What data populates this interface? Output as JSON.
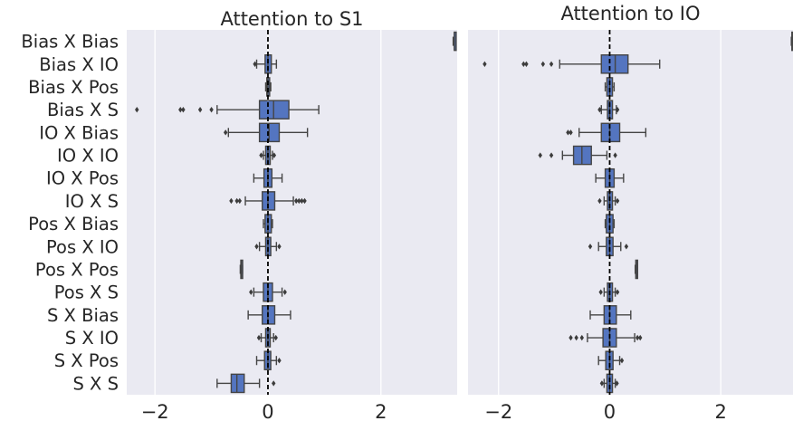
{
  "chart_data": [
    {
      "type": "boxplot",
      "title": "Attention to S1",
      "xlim": [
        -2.5,
        3.35
      ],
      "xticks": [
        -2,
        0,
        2
      ],
      "xtick_labels": [
        "−2",
        "0",
        "2"
      ],
      "vline": 0,
      "grid": true,
      "box_color": "#5475c0",
      "categories": [
        "Bias X Bias",
        "Bias X IO",
        "Bias X Pos",
        "Bias X S",
        "IO X Bias",
        "IO X IO",
        "IO X Pos",
        "IO X S",
        "Pos X Bias",
        "Pos X IO",
        "Pos X Pos",
        "Pos X S",
        "S X Bias",
        "S X IO",
        "S X Pos",
        "S X S"
      ],
      "boxes": [
        {
          "q1": 3.3,
          "median": 3.3,
          "q3": 3.3,
          "wlo": 3.28,
          "whi": 3.32,
          "outliers": []
        },
        {
          "q1": -0.05,
          "median": 0.0,
          "q3": 0.06,
          "wlo": -0.2,
          "whi": 0.15,
          "outliers": [
            -0.23
          ]
        },
        {
          "q1": -0.02,
          "median": 0.0,
          "q3": 0.03,
          "wlo": -0.04,
          "whi": 0.05,
          "outliers": []
        },
        {
          "q1": -0.15,
          "median": 0.1,
          "q3": 0.37,
          "wlo": -0.9,
          "whi": 0.9,
          "outliers": [
            -2.32,
            -1.55,
            -1.5,
            -1.2,
            -1.0
          ]
        },
        {
          "q1": -0.15,
          "median": 0.02,
          "q3": 0.2,
          "wlo": -0.7,
          "whi": 0.7,
          "outliers": [
            -0.75
          ]
        },
        {
          "q1": -0.04,
          "median": 0.0,
          "q3": 0.04,
          "wlo": -0.08,
          "whi": 0.08,
          "outliers": [
            -0.12,
            0.11
          ]
        },
        {
          "q1": -0.07,
          "median": 0.0,
          "q3": 0.07,
          "wlo": -0.25,
          "whi": 0.25,
          "outliers": []
        },
        {
          "q1": -0.1,
          "median": 0.0,
          "q3": 0.12,
          "wlo": -0.4,
          "whi": 0.45,
          "outliers": [
            -0.65,
            -0.55,
            -0.5,
            0.5,
            0.55,
            0.6,
            0.65
          ]
        },
        {
          "q1": -0.05,
          "median": 0.0,
          "q3": 0.06,
          "wlo": -0.08,
          "whi": 0.08,
          "outliers": []
        },
        {
          "q1": -0.04,
          "median": 0.0,
          "q3": 0.05,
          "wlo": -0.15,
          "whi": 0.15,
          "outliers": [
            -0.2,
            0.2
          ]
        },
        {
          "q1": -0.48,
          "median": -0.47,
          "q3": -0.46,
          "wlo": -0.49,
          "whi": -0.45,
          "outliers": []
        },
        {
          "q1": -0.08,
          "median": 0.0,
          "q3": 0.08,
          "wlo": -0.25,
          "whi": 0.25,
          "outliers": [
            -0.3,
            0.3
          ]
        },
        {
          "q1": -0.1,
          "median": 0.0,
          "q3": 0.12,
          "wlo": -0.35,
          "whi": 0.4,
          "outliers": []
        },
        {
          "q1": -0.04,
          "median": 0.0,
          "q3": 0.04,
          "wlo": -0.12,
          "whi": 0.1,
          "outliers": [
            -0.16,
            0.14
          ]
        },
        {
          "q1": -0.06,
          "median": 0.0,
          "q3": 0.05,
          "wlo": -0.2,
          "whi": 0.15,
          "outliers": [
            0.2
          ]
        },
        {
          "q1": -0.65,
          "median": -0.55,
          "q3": -0.42,
          "wlo": -0.9,
          "whi": -0.15,
          "outliers": [
            0.1
          ]
        }
      ]
    },
    {
      "type": "boxplot",
      "title": "Attention to IO",
      "xlim": [
        -2.55,
        3.3
      ],
      "xticks": [
        -2,
        0,
        2
      ],
      "xtick_labels": [
        "−2",
        "0",
        "2"
      ],
      "vline": 0,
      "grid": true,
      "box_color": "#5475c0",
      "categories": [
        "Bias X Bias",
        "Bias X IO",
        "Bias X Pos",
        "Bias X S",
        "IO X Bias",
        "IO X IO",
        "IO X Pos",
        "IO X S",
        "Pos X Bias",
        "Pos X IO",
        "Pos X Pos",
        "Pos X S",
        "S X Bias",
        "S X IO",
        "S X Pos",
        "S X S"
      ],
      "boxes": [
        {
          "q1": 3.28,
          "median": 3.29,
          "q3": 3.3,
          "wlo": 3.27,
          "whi": 3.31,
          "outliers": []
        },
        {
          "q1": -0.15,
          "median": 0.1,
          "q3": 0.33,
          "wlo": -0.9,
          "whi": 0.9,
          "outliers": [
            -2.25,
            -1.55,
            -1.5,
            -1.2,
            -1.05
          ]
        },
        {
          "q1": -0.05,
          "median": 0.0,
          "q3": 0.05,
          "wlo": -0.08,
          "whi": 0.08,
          "outliers": []
        },
        {
          "q1": -0.04,
          "median": 0.0,
          "q3": 0.05,
          "wlo": -0.15,
          "whi": 0.12,
          "outliers": [
            -0.18,
            0.14
          ]
        },
        {
          "q1": -0.15,
          "median": 0.0,
          "q3": 0.18,
          "wlo": -0.55,
          "whi": 0.65,
          "outliers": [
            -0.75,
            -0.7
          ]
        },
        {
          "q1": -0.65,
          "median": -0.5,
          "q3": -0.33,
          "wlo": -0.85,
          "whi": -0.05,
          "outliers": [
            -1.25,
            -1.05,
            0.1
          ]
        },
        {
          "q1": -0.08,
          "median": 0.0,
          "q3": 0.08,
          "wlo": -0.25,
          "whi": 0.25,
          "outliers": []
        },
        {
          "q1": -0.04,
          "median": 0.0,
          "q3": 0.05,
          "wlo": -0.1,
          "whi": 0.1,
          "outliers": [
            -0.18,
            0.14
          ]
        },
        {
          "q1": -0.06,
          "median": 0.0,
          "q3": 0.06,
          "wlo": -0.08,
          "whi": 0.08,
          "outliers": []
        },
        {
          "q1": -0.06,
          "median": 0.0,
          "q3": 0.06,
          "wlo": -0.2,
          "whi": 0.2,
          "outliers": [
            -0.35,
            0.3
          ]
        },
        {
          "q1": 0.47,
          "median": 0.48,
          "q3": 0.49,
          "wlo": 0.46,
          "whi": 0.5,
          "outliers": []
        },
        {
          "q1": -0.04,
          "median": 0.0,
          "q3": 0.05,
          "wlo": -0.1,
          "whi": 0.1,
          "outliers": [
            -0.16,
            0.14
          ]
        },
        {
          "q1": -0.1,
          "median": 0.0,
          "q3": 0.12,
          "wlo": -0.35,
          "whi": 0.38,
          "outliers": []
        },
        {
          "q1": -0.12,
          "median": 0.0,
          "q3": 0.12,
          "wlo": -0.4,
          "whi": 0.45,
          "outliers": [
            -0.7,
            -0.6,
            -0.5,
            0.5,
            0.55
          ]
        },
        {
          "q1": -0.07,
          "median": 0.0,
          "q3": 0.06,
          "wlo": -0.2,
          "whi": 0.18,
          "outliers": [
            0.22
          ]
        },
        {
          "q1": -0.05,
          "median": 0.0,
          "q3": 0.05,
          "wlo": -0.1,
          "whi": 0.1,
          "outliers": [
            -0.14,
            0.13
          ]
        }
      ]
    }
  ]
}
